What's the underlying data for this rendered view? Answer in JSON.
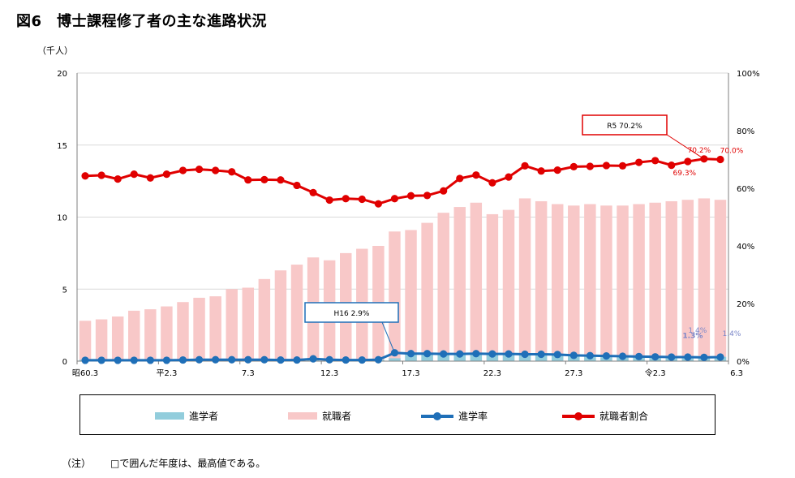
{
  "title": "図6　博士課程修了者の主な進路状況",
  "unit_label": "（千人）",
  "note": {
    "prefix": "（注）",
    "text": "□で囲んだ年度は、最高値である。"
  },
  "legend": [
    {
      "label": "進学者",
      "color": "#92cddc",
      "kind": "bar"
    },
    {
      "label": "就職者",
      "color": "#f8c8c8",
      "kind": "bar"
    },
    {
      "label": "進学率",
      "color": "#1f6fb8",
      "kind": "line"
    },
    {
      "label": "就職者割合",
      "color": "#e00000",
      "kind": "line"
    }
  ],
  "chart_data": {
    "type": "bar",
    "x_tick_labels": [
      "昭60.3",
      "平2.3",
      "7.3",
      "12.3",
      "17.3",
      "22.3",
      "27.3",
      "令2.3",
      "6.3"
    ],
    "left_axis": {
      "label": "（千人）",
      "ticks": [
        0,
        5,
        10,
        15,
        20
      ],
      "ylim": [
        0,
        20
      ]
    },
    "right_axis": {
      "ticks": [
        "0%",
        "20%",
        "40%",
        "60%",
        "80%",
        "100%"
      ],
      "ylim": [
        0,
        100
      ]
    },
    "series": [
      {
        "name": "進学者",
        "type": "bar",
        "axis": "left",
        "values": [
          0.1,
          0.1,
          0.1,
          0.1,
          0.1,
          0.1,
          0.1,
          0.1,
          0.1,
          0.1,
          0.1,
          0.1,
          0.1,
          0.1,
          0.2,
          0.1,
          0.1,
          0.1,
          0.1,
          0.2,
          0.6,
          0.5,
          0.5,
          0.5,
          0.5,
          0.5,
          0.5,
          0.5,
          0.4,
          0.4,
          0.4,
          0.3,
          0.3,
          0.3,
          0.3,
          0.3,
          0.3,
          0.3,
          0.3,
          0.3
        ]
      },
      {
        "name": "就職者",
        "type": "bar",
        "axis": "left",
        "values": [
          2.8,
          2.9,
          3.1,
          3.5,
          3.6,
          3.8,
          4.1,
          4.4,
          4.5,
          5.0,
          5.1,
          5.7,
          6.3,
          6.7,
          7.2,
          7.0,
          7.5,
          7.8,
          8.0,
          9.0,
          9.1,
          9.6,
          10.3,
          10.7,
          11.0,
          10.2,
          10.5,
          11.3,
          11.1,
          10.9,
          10.8,
          10.9,
          10.8,
          10.8,
          10.9,
          11.0,
          11.1,
          11.2,
          11.3,
          11.2
        ]
      },
      {
        "name": "進学率",
        "type": "line",
        "axis": "right",
        "values": [
          0.3,
          0.3,
          0.3,
          0.3,
          0.3,
          0.3,
          0.4,
          0.5,
          0.5,
          0.5,
          0.5,
          0.5,
          0.4,
          0.4,
          0.8,
          0.5,
          0.4,
          0.4,
          0.5,
          2.9,
          2.6,
          2.6,
          2.5,
          2.5,
          2.6,
          2.5,
          2.5,
          2.4,
          2.4,
          2.3,
          2.0,
          1.9,
          1.8,
          1.7,
          1.6,
          1.5,
          1.4,
          1.4,
          1.3,
          1.4
        ]
      },
      {
        "name": "就職者割合",
        "type": "line",
        "axis": "right",
        "values": [
          64.3,
          64.5,
          63.2,
          64.9,
          63.6,
          64.9,
          66.2,
          66.6,
          66.2,
          65.7,
          62.9,
          63.0,
          62.9,
          61.0,
          58.5,
          55.9,
          56.4,
          56.2,
          54.6,
          56.4,
          57.4,
          57.5,
          59.1,
          63.4,
          64.6,
          61.9,
          63.9,
          67.8,
          66.0,
          66.3,
          67.5,
          67.6,
          67.9,
          67.8,
          69.0,
          69.6,
          68.0,
          69.3,
          70.2,
          70.0
        ]
      }
    ],
    "annotations": {
      "max_callouts": [
        {
          "text": "R5  70.2%",
          "series": "就職者割合",
          "index": 38
        },
        {
          "text": "H16  2.9%",
          "series": "進学率",
          "index": 19
        }
      ],
      "labels": [
        {
          "text": "70.2%",
          "series": "就職者割合",
          "index": 38
        },
        {
          "text": "70.0%",
          "series": "就職者割合",
          "index": 39
        },
        {
          "text": "69.3%",
          "series": "就職者割合",
          "index": 37
        },
        {
          "text": "1.3%",
          "series": "進学率",
          "index": 38
        },
        {
          "text": "1.4%",
          "series": "進学率",
          "index": 39
        },
        {
          "text": "1.4%",
          "series": "進学率",
          "index": 37
        }
      ]
    }
  }
}
